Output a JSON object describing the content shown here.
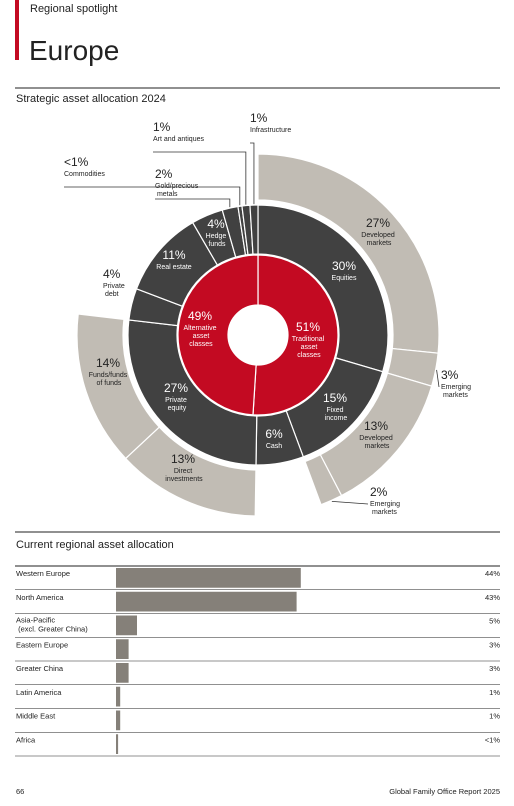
{
  "header": {
    "kicker": "Regional spotlight",
    "title": "Europe"
  },
  "chart_data": [
    {
      "type": "sunburst",
      "title": "Strategic asset allocation 2024",
      "rings": [
        {
          "color": "#c30a22",
          "categories": [
            "Traditional asset classes",
            "Alternative asset classes"
          ],
          "values": [
            51,
            49
          ],
          "value_labels": [
            "51%",
            "49%"
          ]
        },
        {
          "color": "#414141",
          "categories": [
            "Equities",
            "Fixed income",
            "Cash",
            "Private equity",
            "Private debt",
            "Real estate",
            "Hedge funds",
            "Gold/precious metals",
            "Commodities",
            "Art and antiques",
            "Infrastructure"
          ],
          "values": [
            30,
            15,
            6,
            27,
            4,
            11,
            4,
            2,
            0.5,
            1,
            1
          ],
          "value_labels": [
            "30%",
            "15%",
            "6%",
            "27%",
            "4%",
            "11%",
            "4%",
            "2%",
            "<1%",
            "1%",
            "1%"
          ]
        },
        {
          "color": "#c1bcb4",
          "categories": [
            "Developed markets",
            "Emerging markets",
            "Developed markets",
            "Emerging markets",
            "Direct investments",
            "Funds/funds of funds"
          ],
          "parents": [
            0,
            0,
            1,
            1,
            3,
            3
          ],
          "values": [
            27,
            3,
            13,
            2,
            13,
            14
          ],
          "value_labels": [
            "27%",
            "3%",
            "13%",
            "2%",
            "13%",
            "14%"
          ]
        }
      ]
    },
    {
      "type": "bar",
      "orientation": "horizontal",
      "title": "Current regional asset allocation",
      "color": "#858079",
      "categories": [
        "Western Europe",
        "North America",
        "Asia-Pacific (excl. Greater China)",
        "Eastern Europe",
        "Greater China",
        "Latin America",
        "Middle East",
        "Africa"
      ],
      "values": [
        44,
        43,
        5,
        3,
        3,
        1,
        1,
        0.5
      ],
      "value_labels": [
        "44%",
        "43%",
        "5%",
        "3%",
        "3%",
        "1%",
        "1%",
        "<1%"
      ],
      "xlim": [
        0,
        100
      ]
    }
  ],
  "footer": {
    "page": "66",
    "report": "Global Family Office Report 2025"
  }
}
